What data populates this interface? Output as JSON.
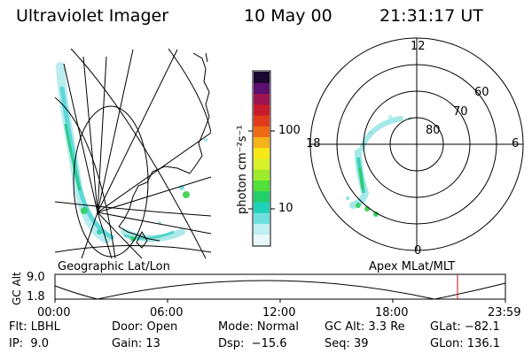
{
  "header": {
    "instrument": "Ultraviolet Imager",
    "date": "10 May 00",
    "time": "21:31:17 UT"
  },
  "colorbar": {
    "unit_label": "photon cm⁻²s⁻¹",
    "ticks": [
      "100",
      "10"
    ],
    "scale": "log",
    "colors": [
      "#e8f7f8",
      "#bfeff0",
      "#6fe0e0",
      "#1fd1b8",
      "#22cf6a",
      "#4fe03a",
      "#9cec2a",
      "#d8f028",
      "#f7e81a",
      "#f5b21a",
      "#ef6a14",
      "#e23a1a",
      "#c81a2a",
      "#9c1450",
      "#5c1070",
      "#1a0830"
    ]
  },
  "left_map": {
    "label": "Geographic Lat/Lon"
  },
  "polar_plot": {
    "label": "Apex MLat/MLT",
    "mlt_labels": {
      "top": "12",
      "left": "18",
      "right": "6",
      "bottom": "0"
    },
    "lat_labels": [
      "60",
      "70",
      "80"
    ]
  },
  "timeline": {
    "ylabel": "GC Alt",
    "yticks": [
      "9.0",
      "1.8"
    ],
    "xticks": [
      "00:00",
      "06:00",
      "12:00",
      "18:00",
      "23:59"
    ],
    "marker_color": "#d01010"
  },
  "info": {
    "col1": [
      "Flt: LBHL",
      "IP:  9.0"
    ],
    "col2": [
      "Door: Open",
      "Gain: 13"
    ],
    "col3": [
      "Mode: Normal",
      "Dsp:  −15.6"
    ],
    "col4": [
      "GC Alt: 3.3 Re",
      "Seq: 39"
    ],
    "col5": [
      "GLat: −82.1",
      "GLon: 136.1"
    ]
  }
}
